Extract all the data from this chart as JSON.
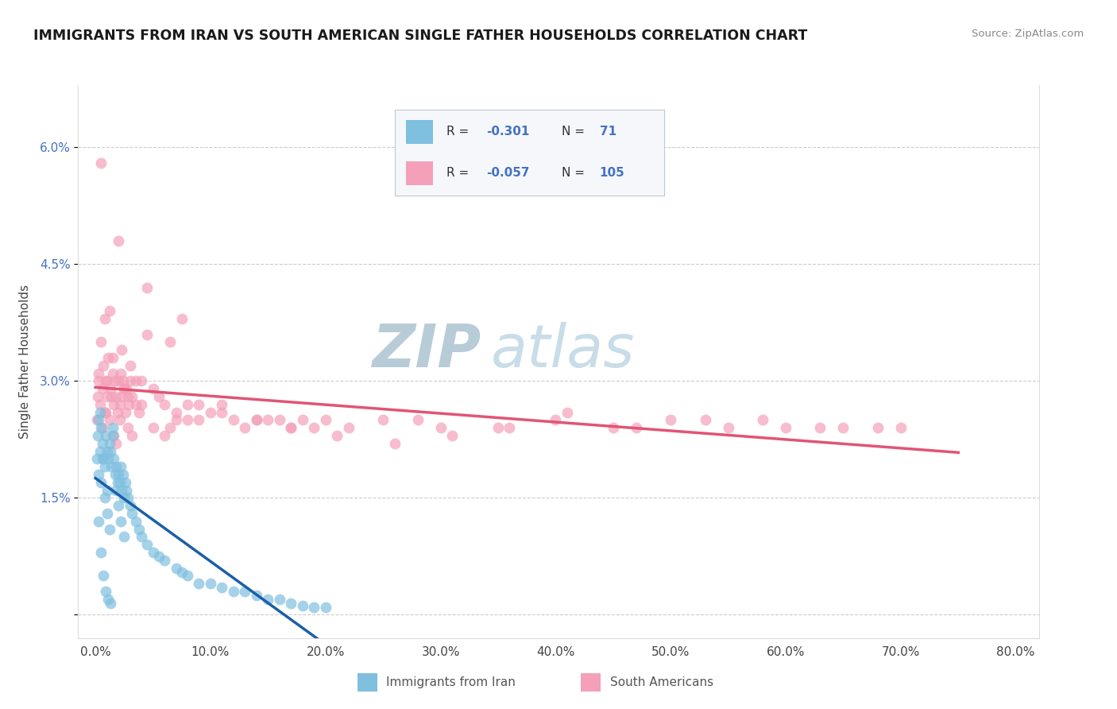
{
  "title": "IMMIGRANTS FROM IRAN VS SOUTH AMERICAN SINGLE FATHER HOUSEHOLDS CORRELATION CHART",
  "source": "Source: ZipAtlas.com",
  "ylabel": "Single Father Households",
  "x_tick_labels": [
    "0.0%",
    "10.0%",
    "20.0%",
    "30.0%",
    "40.0%",
    "50.0%",
    "60.0%",
    "70.0%",
    "80.0%"
  ],
  "x_tick_values": [
    0.0,
    10.0,
    20.0,
    30.0,
    40.0,
    50.0,
    60.0,
    70.0,
    80.0
  ],
  "y_tick_labels": [
    "",
    "1.5%",
    "3.0%",
    "4.5%",
    "6.0%"
  ],
  "y_tick_values": [
    0.0,
    1.5,
    3.0,
    4.5,
    6.0
  ],
  "xlim": [
    -1.5,
    82.0
  ],
  "ylim": [
    -0.3,
    6.8
  ],
  "color_blue": "#7fbfdf",
  "color_pink": "#f4a0b8",
  "color_blue_line": "#1a5fa8",
  "color_pink_line": "#e05575",
  "color_legend_text": "#4472c4",
  "watermark_zip": "ZIP",
  "watermark_atlas": "atlas",
  "watermark_color": "#ccdde8",
  "title_color": "#1a1a1a",
  "background_color": "#ffffff",
  "grid_color": "#cccccc",
  "blue_x": [
    0.1,
    0.2,
    0.3,
    0.3,
    0.4,
    0.5,
    0.5,
    0.6,
    0.7,
    0.8,
    0.9,
    1.0,
    1.0,
    1.1,
    1.2,
    1.3,
    1.4,
    1.5,
    1.6,
    1.7,
    1.8,
    1.9,
    2.0,
    2.1,
    2.2,
    2.3,
    2.4,
    2.5,
    2.6,
    2.7,
    2.8,
    3.0,
    3.2,
    3.5,
    3.8,
    4.0,
    4.5,
    5.0,
    5.5,
    6.0,
    7.0,
    7.5,
    8.0,
    9.0,
    10.0,
    11.0,
    12.0,
    13.0,
    14.0,
    15.0,
    16.0,
    17.0,
    18.0,
    19.0,
    20.0,
    0.4,
    0.6,
    0.8,
    1.0,
    1.2,
    1.5,
    1.8,
    2.0,
    2.2,
    2.5,
    0.3,
    0.5,
    0.7,
    0.9,
    1.1,
    1.3
  ],
  "blue_y": [
    2.0,
    2.3,
    2.5,
    1.8,
    2.1,
    2.4,
    1.7,
    2.2,
    2.0,
    1.9,
    2.3,
    2.1,
    1.6,
    2.0,
    2.2,
    2.1,
    1.9,
    2.3,
    2.0,
    1.8,
    1.9,
    1.7,
    1.8,
    1.7,
    1.9,
    1.6,
    1.8,
    1.5,
    1.7,
    1.6,
    1.5,
    1.4,
    1.3,
    1.2,
    1.1,
    1.0,
    0.9,
    0.8,
    0.75,
    0.7,
    0.6,
    0.55,
    0.5,
    0.4,
    0.4,
    0.35,
    0.3,
    0.3,
    0.25,
    0.2,
    0.2,
    0.15,
    0.12,
    0.1,
    0.1,
    2.6,
    2.0,
    1.5,
    1.3,
    1.1,
    2.4,
    1.6,
    1.4,
    1.2,
    1.0,
    1.2,
    0.8,
    0.5,
    0.3,
    0.2,
    0.15
  ],
  "pink_x": [
    0.1,
    0.2,
    0.3,
    0.4,
    0.5,
    0.6,
    0.7,
    0.8,
    0.9,
    1.0,
    1.1,
    1.2,
    1.3,
    1.4,
    1.5,
    1.6,
    1.7,
    1.8,
    1.9,
    2.0,
    2.1,
    2.2,
    2.3,
    2.4,
    2.5,
    2.6,
    2.7,
    2.8,
    2.9,
    3.0,
    3.2,
    3.5,
    3.8,
    4.0,
    4.5,
    5.0,
    5.5,
    6.0,
    6.5,
    7.0,
    7.5,
    8.0,
    9.0,
    10.0,
    11.0,
    12.0,
    13.0,
    14.0,
    15.0,
    16.0,
    17.0,
    18.0,
    19.0,
    20.0,
    22.0,
    25.0,
    28.0,
    30.0,
    35.0,
    40.0,
    45.0,
    50.0,
    55.0,
    60.0,
    65.0,
    70.0,
    0.5,
    0.8,
    1.0,
    1.5,
    2.0,
    2.5,
    3.0,
    3.5,
    4.0,
    5.0,
    6.0,
    7.0,
    8.0,
    1.2,
    1.8,
    2.3,
    2.8,
    3.2,
    4.5,
    6.5,
    9.0,
    11.0,
    14.0,
    17.0,
    21.0,
    26.0,
    31.0,
    36.0,
    41.0,
    47.0,
    53.0,
    58.0,
    63.0,
    68.0,
    0.3,
    0.6,
    0.9,
    1.6,
    2.1
  ],
  "pink_y": [
    2.5,
    2.8,
    3.1,
    2.7,
    5.8,
    2.9,
    3.2,
    2.6,
    3.0,
    2.8,
    3.3,
    2.5,
    2.9,
    2.8,
    3.1,
    2.7,
    3.0,
    2.8,
    2.6,
    3.0,
    2.7,
    3.1,
    2.8,
    3.0,
    2.9,
    2.6,
    2.9,
    2.8,
    2.7,
    3.0,
    2.8,
    2.7,
    2.6,
    3.0,
    4.2,
    2.9,
    2.8,
    2.7,
    3.5,
    2.6,
    3.8,
    2.5,
    2.5,
    2.6,
    2.7,
    2.5,
    2.4,
    2.5,
    2.5,
    2.5,
    2.4,
    2.5,
    2.4,
    2.5,
    2.4,
    2.5,
    2.5,
    2.4,
    2.4,
    2.5,
    2.4,
    2.5,
    2.4,
    2.4,
    2.4,
    2.4,
    3.5,
    3.8,
    3.0,
    3.3,
    4.8,
    2.9,
    3.2,
    3.0,
    2.7,
    2.4,
    2.3,
    2.5,
    2.7,
    3.9,
    2.2,
    3.4,
    2.4,
    2.3,
    3.6,
    2.4,
    2.7,
    2.6,
    2.5,
    2.4,
    2.3,
    2.2,
    2.3,
    2.4,
    2.6,
    2.4,
    2.5,
    2.5,
    2.4,
    2.4,
    3.0,
    2.4,
    2.6,
    2.3,
    2.5
  ]
}
